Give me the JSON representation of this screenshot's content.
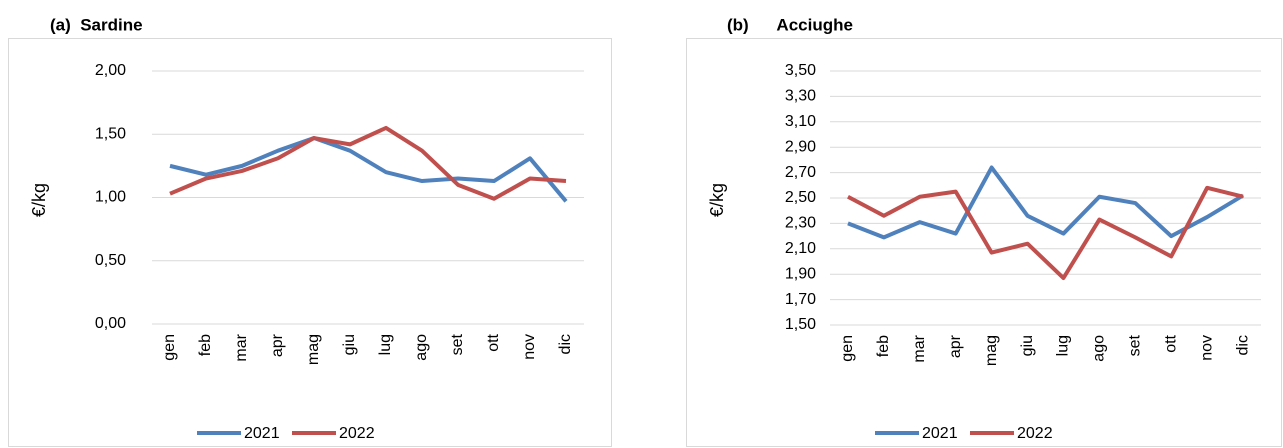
{
  "chart_data": [
    {
      "type": "line",
      "title": "(a)  Sardine",
      "y_label": "€/kg",
      "categories": [
        "gen",
        "feb",
        "mar",
        "apr",
        "mag",
        "giu",
        "lug",
        "ago",
        "set",
        "ott",
        "nov",
        "dic"
      ],
      "series": [
        {
          "name": "2021",
          "color": "#4f81bd",
          "values": [
            1.25,
            1.18,
            1.25,
            1.37,
            1.47,
            1.37,
            1.2,
            1.13,
            1.15,
            1.13,
            1.31,
            0.97
          ]
        },
        {
          "name": "2022",
          "color": "#c0504d",
          "values": [
            1.03,
            1.15,
            1.21,
            1.31,
            1.47,
            1.42,
            1.55,
            1.37,
            1.1,
            0.99,
            1.15,
            1.13
          ]
        }
      ],
      "ylim": [
        0,
        2
      ],
      "yticks": [
        {
          "value": 0,
          "label": "0,00"
        },
        {
          "value": 0.5,
          "label": "0,50"
        },
        {
          "value": 1,
          "label": "1,00"
        },
        {
          "value": 1.5,
          "label": "1,50"
        },
        {
          "value": 2,
          "label": "2,00"
        }
      ],
      "grid": true,
      "legend": "bottom"
    },
    {
      "type": "line",
      "title": "(b)      Acciughe",
      "y_label": "€/kg",
      "categories": [
        "gen",
        "feb",
        "mar",
        "apr",
        "mag",
        "giu",
        "lug",
        "ago",
        "set",
        "ott",
        "nov",
        "dic"
      ],
      "series": [
        {
          "name": "2021",
          "color": "#4f81bd",
          "values": [
            2.3,
            2.19,
            2.31,
            2.22,
            2.74,
            2.36,
            2.22,
            2.51,
            2.46,
            2.2,
            2.35,
            2.52
          ]
        },
        {
          "name": "2022",
          "color": "#c0504d",
          "values": [
            2.51,
            2.36,
            2.51,
            2.55,
            2.07,
            2.14,
            1.87,
            2.33,
            2.19,
            2.04,
            2.58,
            2.51
          ]
        }
      ],
      "ylim": [
        1.5,
        3.5
      ],
      "yticks": [
        {
          "value": 1.5,
          "label": "1,50"
        },
        {
          "value": 1.7,
          "label": "1,70"
        },
        {
          "value": 1.9,
          "label": "1,90"
        },
        {
          "value": 2.1,
          "label": "2,10"
        },
        {
          "value": 2.3,
          "label": "2,30"
        },
        {
          "value": 2.5,
          "label": "2,50"
        },
        {
          "value": 2.7,
          "label": "2,70"
        },
        {
          "value": 2.9,
          "label": "2,90"
        },
        {
          "value": 3.1,
          "label": "3,10"
        },
        {
          "value": 3.3,
          "label": "3,30"
        },
        {
          "value": 3.5,
          "label": "3,50"
        }
      ],
      "grid": true,
      "legend": "bottom"
    }
  ]
}
